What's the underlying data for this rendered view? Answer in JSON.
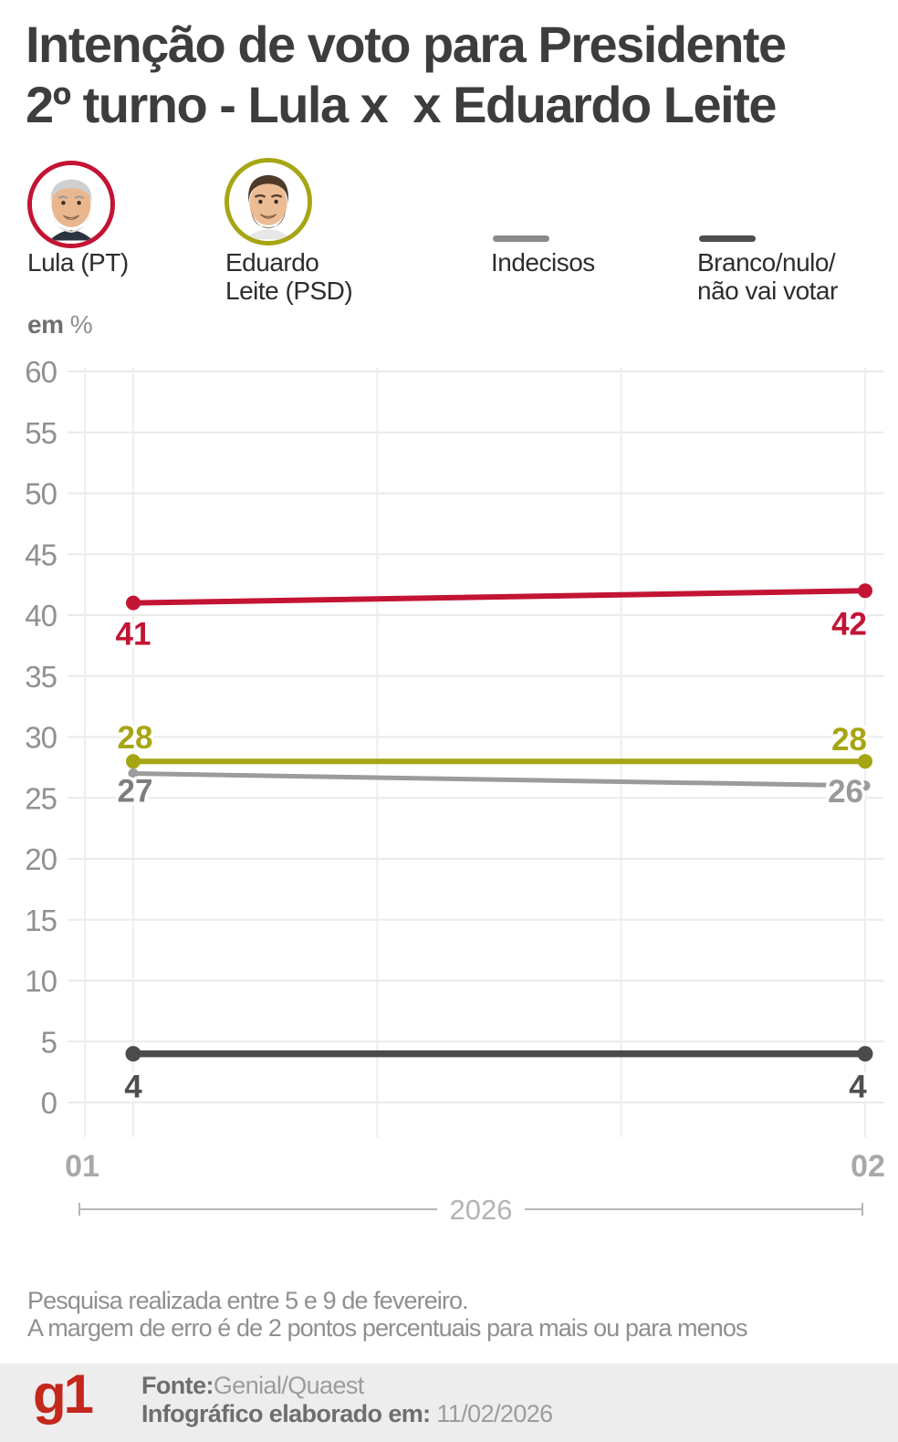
{
  "title": {
    "line1": "Intenção de voto para Presidente",
    "line2": "2º turno - Lula x  x Eduardo Leite"
  },
  "legend": {
    "lula": {
      "label": "Lula (PT)",
      "ring_color": "#c31434"
    },
    "leite": {
      "label_line1": "Eduardo",
      "label_line2": "Leite (PSD)",
      "ring_color": "#a6a513"
    },
    "indecisos": {
      "label": "Indecisos",
      "swatch_color": "#8a8a8a"
    },
    "branco": {
      "label_line1": "Branco/nulo/",
      "label_line2": "não vai votar",
      "swatch_color": "#4d4d4d"
    }
  },
  "unit": {
    "bold": "em",
    "suffix": "%"
  },
  "chart_data": {
    "type": "line",
    "x": [
      "01",
      "02"
    ],
    "series": [
      {
        "name": "Lula (PT)",
        "values": [
          41,
          42
        ],
        "color": "#c31434"
      },
      {
        "name": "Eduardo Leite (PSD)",
        "values": [
          28,
          28
        ],
        "color": "#a6a513"
      },
      {
        "name": "Indecisos",
        "values": [
          27,
          26
        ],
        "color": "#9b9b9b"
      },
      {
        "name": "Branco/nulo/não vai votar",
        "values": [
          4,
          4
        ],
        "color": "#4b4b4b"
      }
    ],
    "ylabel": "em %",
    "ylim": [
      0,
      60
    ],
    "ytick_step": 5,
    "grid": true,
    "legend_position": "top",
    "period_label": "2026"
  },
  "footnote": {
    "line1": "Pesquisa realizada entre 5 e 9 de fevereiro.",
    "line2": "A margem de erro é de 2 pontos percentuais para mais ou para menos"
  },
  "footer": {
    "logo": "g1",
    "source_label": "Fonte:",
    "source_value": "Genial/Quaest",
    "elaborated_label": "Infográfico elaborado em:",
    "elaborated_value": "11/02/2026"
  }
}
